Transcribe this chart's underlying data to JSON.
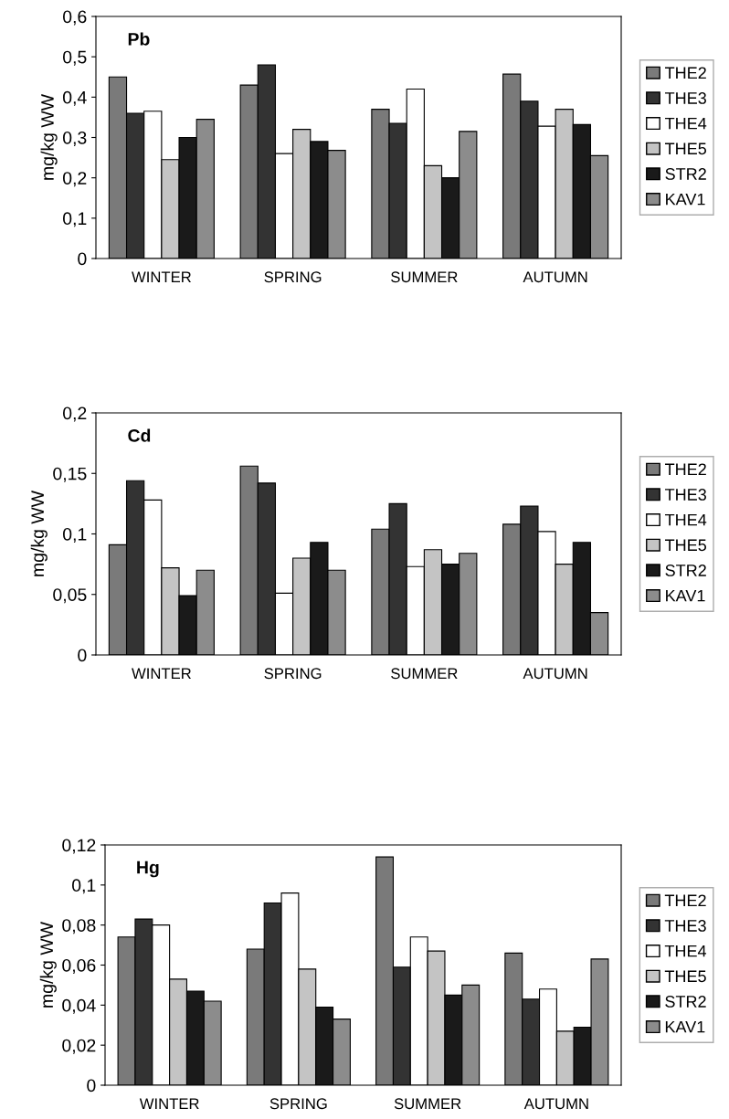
{
  "chart_data": [
    {
      "type": "bar",
      "title": "Pb",
      "ylabel": "mg/kg WW",
      "categories": [
        "WINTER",
        "SPRING",
        "SUMMER",
        "AUTUMN"
      ],
      "ylim": [
        0,
        0.6
      ],
      "yticks": [
        0,
        {
          "value": 0.1,
          "label": "0,1"
        },
        {
          "value": 0.2,
          "label": "0,2"
        },
        {
          "value": 0.3,
          "label": "0,3"
        },
        {
          "value": 0.4,
          "label": "0,4"
        },
        {
          "value": 0.5,
          "label": "0,5"
        },
        {
          "value": 0.6,
          "label": "0,6"
        }
      ],
      "grid": false,
      "legend": "right",
      "series": [
        {
          "name": "THE2",
          "color": "#7a7a7a",
          "values": [
            0.45,
            0.43,
            0.37,
            0.457
          ]
        },
        {
          "name": "THE3",
          "color": "#333333",
          "values": [
            0.36,
            0.48,
            0.335,
            0.39
          ]
        },
        {
          "name": "THE4",
          "color": "#ffffff",
          "values": [
            0.365,
            0.26,
            0.42,
            0.328
          ]
        },
        {
          "name": "THE5",
          "color": "#c4c4c4",
          "values": [
            0.245,
            0.32,
            0.23,
            0.37
          ]
        },
        {
          "name": "STR2",
          "color": "#1a1a1a",
          "values": [
            0.3,
            0.29,
            0.2,
            0.332
          ]
        },
        {
          "name": "KAV1",
          "color": "#8c8c8c",
          "values": [
            0.345,
            0.268,
            0.315,
            0.255
          ]
        }
      ]
    },
    {
      "type": "bar",
      "title": "Cd",
      "ylabel": "mg/kg WW",
      "categories": [
        "WINTER",
        "SPRING",
        "SUMMER",
        "AUTUMN"
      ],
      "ylim": [
        0,
        0.2
      ],
      "yticks": [
        0,
        {
          "value": 0.05,
          "label": "0,05"
        },
        {
          "value": 0.1,
          "label": "0,1"
        },
        {
          "value": 0.15,
          "label": "0,15"
        },
        {
          "value": 0.2,
          "label": "0,2"
        }
      ],
      "grid": false,
      "legend": "right",
      "series": [
        {
          "name": "THE2",
          "color": "#7a7a7a",
          "values": [
            0.091,
            0.156,
            0.104,
            0.108
          ]
        },
        {
          "name": "THE3",
          "color": "#333333",
          "values": [
            0.144,
            0.142,
            0.125,
            0.123
          ]
        },
        {
          "name": "THE4",
          "color": "#ffffff",
          "values": [
            0.128,
            0.051,
            0.073,
            0.102
          ]
        },
        {
          "name": "THE5",
          "color": "#c4c4c4",
          "values": [
            0.072,
            0.08,
            0.087,
            0.075
          ]
        },
        {
          "name": "STR2",
          "color": "#1a1a1a",
          "values": [
            0.049,
            0.093,
            0.075,
            0.093
          ]
        },
        {
          "name": "KAV1",
          "color": "#8c8c8c",
          "values": [
            0.07,
            0.07,
            0.084,
            0.035
          ]
        }
      ]
    },
    {
      "type": "bar",
      "title": "Hg",
      "ylabel": "mg/kg WW",
      "categories": [
        "WINTER",
        "SPRING",
        "SUMMER",
        "AUTUMN"
      ],
      "ylim": [
        0,
        0.12
      ],
      "yticks": [
        0,
        {
          "value": 0.02,
          "label": "0,02"
        },
        {
          "value": 0.04,
          "label": "0,04"
        },
        {
          "value": 0.06,
          "label": "0,06"
        },
        {
          "value": 0.08,
          "label": "0,08"
        },
        {
          "value": 0.1,
          "label": "0,1"
        },
        {
          "value": 0.12,
          "label": "0,12"
        }
      ],
      "grid": false,
      "legend": "right",
      "series": [
        {
          "name": "THE2",
          "color": "#7a7a7a",
          "values": [
            0.074,
            0.068,
            0.114,
            0.066
          ]
        },
        {
          "name": "THE3",
          "color": "#333333",
          "values": [
            0.083,
            0.091,
            0.059,
            0.043
          ]
        },
        {
          "name": "THE4",
          "color": "#ffffff",
          "values": [
            0.08,
            0.096,
            0.074,
            0.048
          ]
        },
        {
          "name": "THE5",
          "color": "#c4c4c4",
          "values": [
            0.053,
            0.058,
            0.067,
            0.027
          ]
        },
        {
          "name": "STR2",
          "color": "#1a1a1a",
          "values": [
            0.047,
            0.039,
            0.045,
            0.029
          ]
        },
        {
          "name": "KAV1",
          "color": "#8c8c8c",
          "values": [
            0.042,
            0.033,
            0.05,
            0.063
          ]
        }
      ]
    }
  ]
}
